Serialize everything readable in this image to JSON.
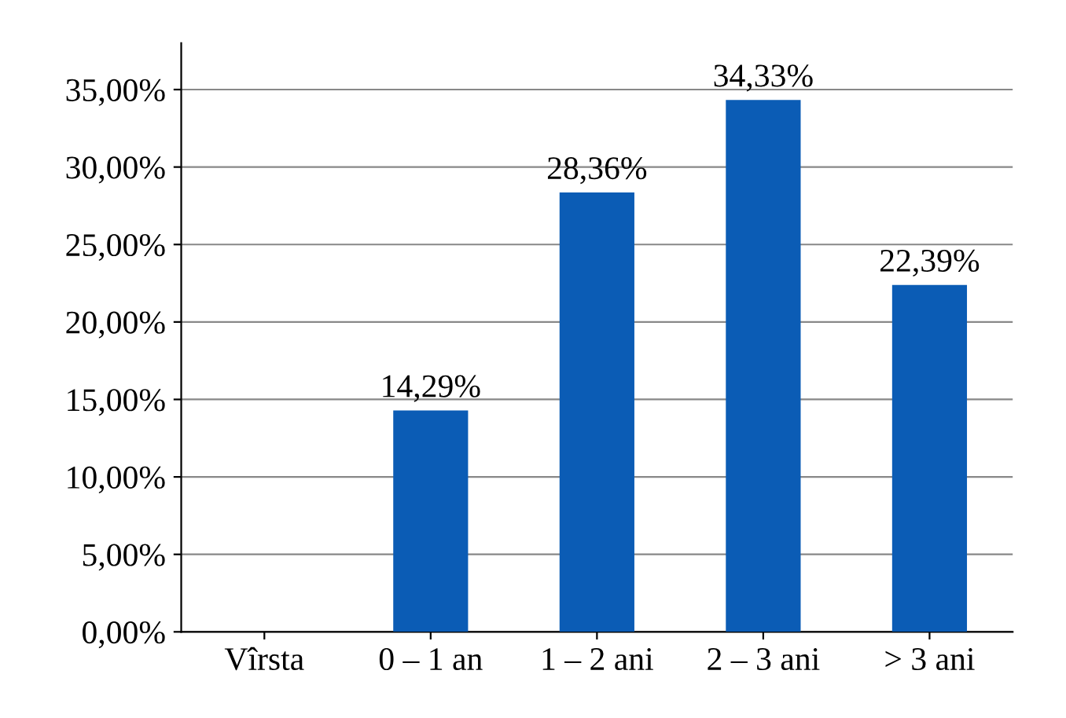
{
  "chart_data": {
    "type": "bar",
    "categories": [
      "Vîrsta",
      "0 – 1 an",
      "1 – 2 ani",
      "2 – 3 ani",
      "> 3 ani"
    ],
    "values": [
      null,
      14.29,
      28.36,
      34.33,
      22.39
    ],
    "value_labels": [
      null,
      "14,29%",
      "28,36%",
      "34,33%",
      "22,39%"
    ],
    "color": "#0b5cb5",
    "ylim": [
      0,
      38
    ],
    "yticks": [
      {
        "value": 0,
        "label": "0,00%"
      },
      {
        "value": 5,
        "label": "5,00%"
      },
      {
        "value": 10,
        "label": "10,00%"
      },
      {
        "value": 15,
        "label": "15,00%"
      },
      {
        "value": 20,
        "label": "20,00%"
      },
      {
        "value": 25,
        "label": "25,00%"
      },
      {
        "value": 30,
        "label": "30,00%"
      },
      {
        "value": 35,
        "label": "35,00%"
      }
    ],
    "grid": "y"
  }
}
